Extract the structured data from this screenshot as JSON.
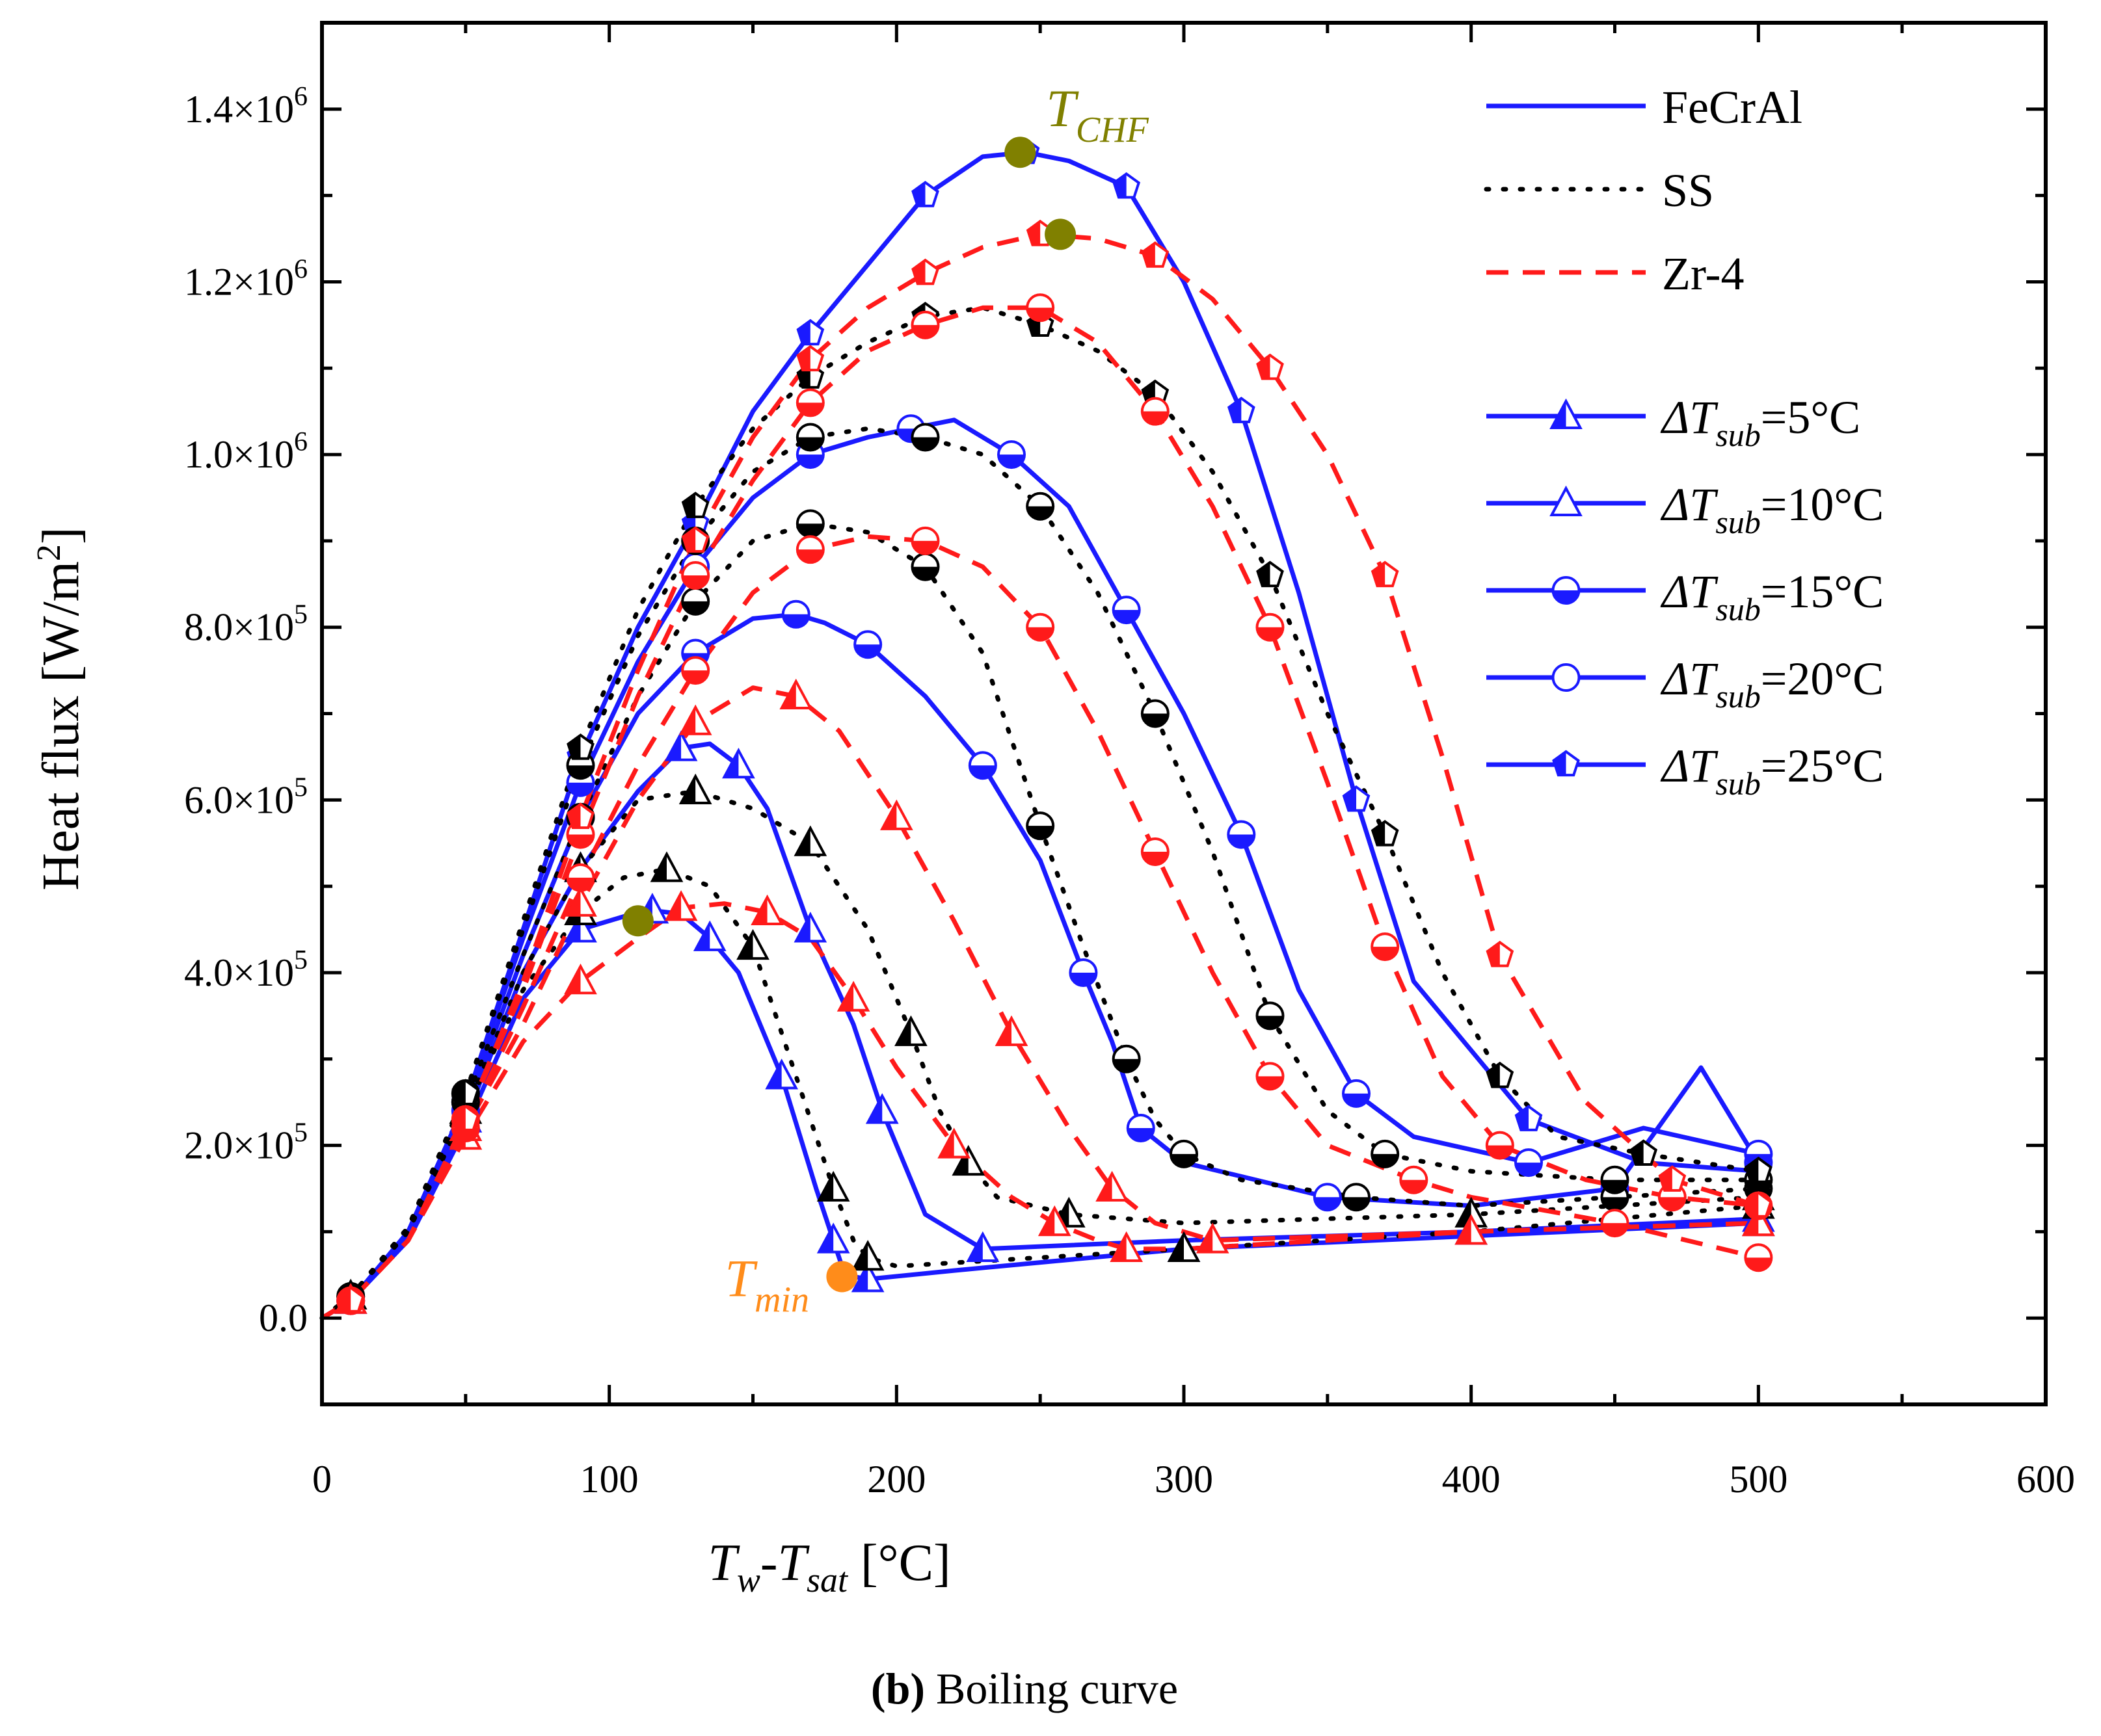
{
  "chart_data": {
    "type": "line",
    "xlabel": {
      "main": "T",
      "sub1": "w",
      "mid": "-T",
      "sub2": "sat",
      "unit": " [°C]"
    },
    "ylabel": "Heat flux [W/m",
    "ylabel_sup": "2",
    "ylabel_end": "]",
    "xlim": [
      0,
      600
    ],
    "ylim": [
      -100000,
      1500000
    ],
    "x_ticks": [
      0,
      100,
      200,
      300,
      400,
      500,
      600
    ],
    "x_tick_labels": [
      "0",
      "100",
      "200",
      "300",
      "400",
      "500",
      "600"
    ],
    "y_ticks": [
      0,
      200000,
      400000,
      600000,
      800000,
      1000000,
      1200000,
      1400000
    ],
    "y_tick_labels": [
      {
        "mant": "0.0",
        "exp": ""
      },
      {
        "mant": "2.0×10",
        "exp": "5"
      },
      {
        "mant": "4.0×10",
        "exp": "5"
      },
      {
        "mant": "6.0×10",
        "exp": "5"
      },
      {
        "mant": "8.0×10",
        "exp": "5"
      },
      {
        "mant": "1.0×10",
        "exp": "6"
      },
      {
        "mant": "1.2×10",
        "exp": "6"
      },
      {
        "mant": "1.4×10",
        "exp": "6"
      }
    ],
    "materials": [
      {
        "name": "FeCrAl",
        "color": "#1a1aff",
        "dash": "solid"
      },
      {
        "name": "SS",
        "color": "#000000",
        "dash": "dotted"
      },
      {
        "name": "Zr-4",
        "color": "#ff1a1a",
        "dash": "dashed"
      }
    ],
    "legend_subcooling": [
      {
        "label_pre": "ΔT",
        "label_sub": "sub",
        "label_post": "=5°C",
        "marker": "triangle"
      },
      {
        "label_pre": "ΔT",
        "label_sub": "sub",
        "label_post": "=10°C",
        "marker": "triangle-open"
      },
      {
        "label_pre": "ΔT",
        "label_sub": "sub",
        "label_post": "=15°C",
        "marker": "circle"
      },
      {
        "label_pre": "ΔT",
        "label_sub": "sub",
        "label_post": "=20°C",
        "marker": "circle-open"
      },
      {
        "label_pre": "ΔT",
        "label_sub": "sub",
        "label_post": "=25°C",
        "marker": "pentagon"
      }
    ],
    "series": [
      {
        "material": "FeCrAl",
        "subcooling": "5°C",
        "marker": "triangle",
        "x": [
          0,
          10,
          30,
          50,
          70,
          90,
          105,
          115,
          125,
          135,
          145,
          160,
          172,
          178,
          182,
          190,
          220,
          300,
          400,
          500
        ],
        "y": [
          0,
          20000,
          90000,
          220000,
          370000,
          450000,
          465000,
          472000,
          468000,
          440000,
          400000,
          280000,
          150000,
          90000,
          50000,
          45000,
          55000,
          80000,
          95000,
          110000
        ]
      },
      {
        "material": "FeCrAl",
        "subcooling": "10°C",
        "marker": "triangle",
        "x": [
          0,
          10,
          30,
          50,
          70,
          90,
          110,
          125,
          135,
          145,
          155,
          170,
          185,
          195,
          210,
          230,
          300,
          400,
          500
        ],
        "y": [
          0,
          20000,
          95000,
          230000,
          400000,
          520000,
          610000,
          660000,
          665000,
          640000,
          590000,
          450000,
          340000,
          240000,
          120000,
          80000,
          90000,
          100000,
          115000
        ]
      },
      {
        "material": "FeCrAl",
        "subcooling": "15°C",
        "marker": "circle",
        "x": [
          0,
          10,
          30,
          50,
          70,
          90,
          110,
          130,
          150,
          165,
          175,
          190,
          210,
          230,
          250,
          265,
          275,
          285,
          300,
          350,
          400,
          450,
          480,
          500
        ],
        "y": [
          0,
          20000,
          100000,
          240000,
          420000,
          580000,
          700000,
          770000,
          810000,
          815000,
          805000,
          780000,
          720000,
          640000,
          530000,
          400000,
          320000,
          220000,
          180000,
          140000,
          130000,
          150000,
          290000,
          180000
        ]
      },
      {
        "material": "FeCrAl",
        "subcooling": "20°C",
        "marker": "circle-open",
        "x": [
          0,
          10,
          30,
          50,
          70,
          90,
          110,
          130,
          150,
          170,
          190,
          205,
          220,
          240,
          260,
          280,
          300,
          320,
          340,
          360,
          380,
          420,
          460,
          500
        ],
        "y": [
          0,
          20000,
          100000,
          250000,
          440000,
          620000,
          760000,
          870000,
          950000,
          1000000,
          1020000,
          1030000,
          1040000,
          1000000,
          940000,
          820000,
          700000,
          560000,
          380000,
          260000,
          210000,
          180000,
          220000,
          190000
        ]
      },
      {
        "material": "FeCrAl",
        "subcooling": "25°C",
        "marker": "pentagon",
        "x": [
          0,
          10,
          30,
          50,
          70,
          90,
          110,
          130,
          150,
          170,
          190,
          210,
          230,
          245,
          260,
          280,
          300,
          320,
          340,
          360,
          380,
          420,
          460,
          500
        ],
        "y": [
          0,
          20000,
          100000,
          250000,
          450000,
          650000,
          800000,
          920000,
          1050000,
          1140000,
          1220000,
          1300000,
          1345000,
          1350000,
          1340000,
          1310000,
          1200000,
          1050000,
          840000,
          600000,
          390000,
          230000,
          180000,
          170000
        ]
      },
      {
        "material": "SS",
        "subcooling": "5°C",
        "marker": "triangle",
        "x": [
          0,
          10,
          30,
          50,
          70,
          90,
          105,
          120,
          135,
          150,
          165,
          178,
          185,
          190,
          200,
          300,
          400,
          500
        ],
        "y": [
          0,
          25000,
          100000,
          240000,
          380000,
          470000,
          510000,
          520000,
          500000,
          430000,
          280000,
          150000,
          90000,
          70000,
          60000,
          80000,
          100000,
          130000
        ]
      },
      {
        "material": "SS",
        "subcooling": "10°C",
        "marker": "triangle-open",
        "x": [
          0,
          10,
          30,
          50,
          70,
          90,
          110,
          130,
          150,
          170,
          190,
          205,
          215,
          225,
          235,
          260,
          300,
          400,
          500
        ],
        "y": [
          0,
          25000,
          100000,
          240000,
          400000,
          520000,
          600000,
          610000,
          590000,
          550000,
          450000,
          330000,
          240000,
          180000,
          140000,
          120000,
          110000,
          120000,
          140000
        ]
      },
      {
        "material": "SS",
        "subcooling": "15°C",
        "marker": "circle",
        "x": [
          0,
          10,
          30,
          50,
          70,
          90,
          110,
          130,
          150,
          170,
          190,
          210,
          230,
          250,
          265,
          280,
          290,
          300,
          320,
          360,
          400,
          450,
          500
        ],
        "y": [
          0,
          25000,
          105000,
          250000,
          420000,
          580000,
          720000,
          830000,
          900000,
          920000,
          910000,
          870000,
          770000,
          570000,
          430000,
          300000,
          230000,
          190000,
          160000,
          140000,
          130000,
          140000,
          150000
        ]
      },
      {
        "material": "SS",
        "subcooling": "20°C",
        "marker": "circle-open",
        "x": [
          0,
          10,
          30,
          50,
          70,
          90,
          110,
          130,
          150,
          170,
          190,
          210,
          230,
          250,
          270,
          290,
          310,
          330,
          350,
          370,
          400,
          450,
          500
        ],
        "y": [
          0,
          25000,
          105000,
          260000,
          450000,
          640000,
          790000,
          900000,
          980000,
          1020000,
          1030000,
          1020000,
          1000000,
          940000,
          840000,
          700000,
          540000,
          350000,
          240000,
          190000,
          170000,
          160000,
          160000
        ]
      },
      {
        "material": "SS",
        "subcooling": "25°C",
        "marker": "pentagon",
        "x": [
          0,
          10,
          30,
          50,
          70,
          90,
          110,
          130,
          150,
          170,
          190,
          210,
          230,
          250,
          270,
          290,
          310,
          330,
          350,
          370,
          390,
          410,
          430,
          460,
          500
        ],
        "y": [
          0,
          25000,
          105000,
          260000,
          460000,
          660000,
          820000,
          940000,
          1030000,
          1090000,
          1130000,
          1160000,
          1170000,
          1150000,
          1120000,
          1070000,
          980000,
          860000,
          700000,
          560000,
          400000,
          280000,
          210000,
          190000,
          170000
        ]
      },
      {
        "material": "Zr-4",
        "subcooling": "5°C",
        "marker": "triangle",
        "x": [
          0,
          10,
          30,
          50,
          70,
          90,
          110,
          125,
          140,
          155,
          170,
          185,
          200,
          220,
          240,
          255,
          270,
          280,
          300,
          400,
          500
        ],
        "y": [
          0,
          20000,
          90000,
          210000,
          320000,
          390000,
          440000,
          475000,
          480000,
          470000,
          440000,
          370000,
          290000,
          200000,
          140000,
          110000,
          90000,
          80000,
          80000,
          100000,
          110000
        ]
      },
      {
        "material": "Zr-4",
        "subcooling": "10°C",
        "marker": "triangle-open",
        "x": [
          0,
          10,
          30,
          50,
          70,
          90,
          110,
          130,
          150,
          165,
          180,
          200,
          220,
          240,
          260,
          275,
          290,
          310,
          400,
          500
        ],
        "y": [
          0,
          20000,
          90000,
          220000,
          340000,
          480000,
          600000,
          690000,
          730000,
          720000,
          680000,
          580000,
          460000,
          330000,
          220000,
          150000,
          110000,
          90000,
          100000,
          110000
        ]
      },
      {
        "material": "Zr-4",
        "subcooling": "15°C",
        "marker": "circle",
        "x": [
          0,
          10,
          30,
          50,
          70,
          90,
          110,
          130,
          150,
          170,
          190,
          210,
          230,
          250,
          270,
          290,
          310,
          330,
          350,
          380,
          400,
          450,
          500
        ],
        "y": [
          0,
          20000,
          90000,
          220000,
          360000,
          510000,
          640000,
          750000,
          840000,
          890000,
          905000,
          900000,
          870000,
          800000,
          680000,
          540000,
          400000,
          280000,
          200000,
          160000,
          140000,
          110000,
          70000
        ]
      },
      {
        "material": "Zr-4",
        "subcooling": "20°C",
        "marker": "circle-open",
        "x": [
          0,
          10,
          30,
          50,
          70,
          90,
          110,
          130,
          150,
          170,
          190,
          210,
          230,
          250,
          270,
          290,
          310,
          330,
          350,
          370,
          390,
          410,
          440,
          470,
          500
        ],
        "y": [
          0,
          20000,
          90000,
          230000,
          380000,
          560000,
          720000,
          860000,
          970000,
          1060000,
          1120000,
          1150000,
          1170000,
          1170000,
          1130000,
          1050000,
          940000,
          800000,
          620000,
          430000,
          280000,
          200000,
          160000,
          140000,
          130000
        ]
      },
      {
        "material": "Zr-4",
        "subcooling": "25°C",
        "marker": "pentagon",
        "x": [
          0,
          10,
          30,
          50,
          70,
          90,
          110,
          130,
          150,
          170,
          190,
          210,
          230,
          250,
          270,
          290,
          310,
          330,
          350,
          370,
          390,
          410,
          440,
          470,
          500
        ],
        "y": [
          0,
          20000,
          90000,
          230000,
          390000,
          580000,
          750000,
          900000,
          1020000,
          1110000,
          1170000,
          1210000,
          1240000,
          1255000,
          1250000,
          1230000,
          1180000,
          1100000,
          1000000,
          860000,
          650000,
          420000,
          250000,
          160000,
          130000
        ]
      }
    ],
    "annotations": [
      {
        "label": "T",
        "sub": "CHF",
        "x": 243,
        "y": 1350000,
        "color": "#808000"
      },
      {
        "label": "",
        "sub": "",
        "x": 257,
        "y": 1255000,
        "color": "#808000"
      },
      {
        "label": "",
        "sub": "",
        "x": 110,
        "y": 460000,
        "color": "#808000"
      },
      {
        "label": "T",
        "sub": "min",
        "x": 181,
        "y": 48000,
        "color": "#ff8c1a"
      }
    ],
    "caption": {
      "bold": "(b)",
      "rest": " Boiling curve"
    }
  }
}
